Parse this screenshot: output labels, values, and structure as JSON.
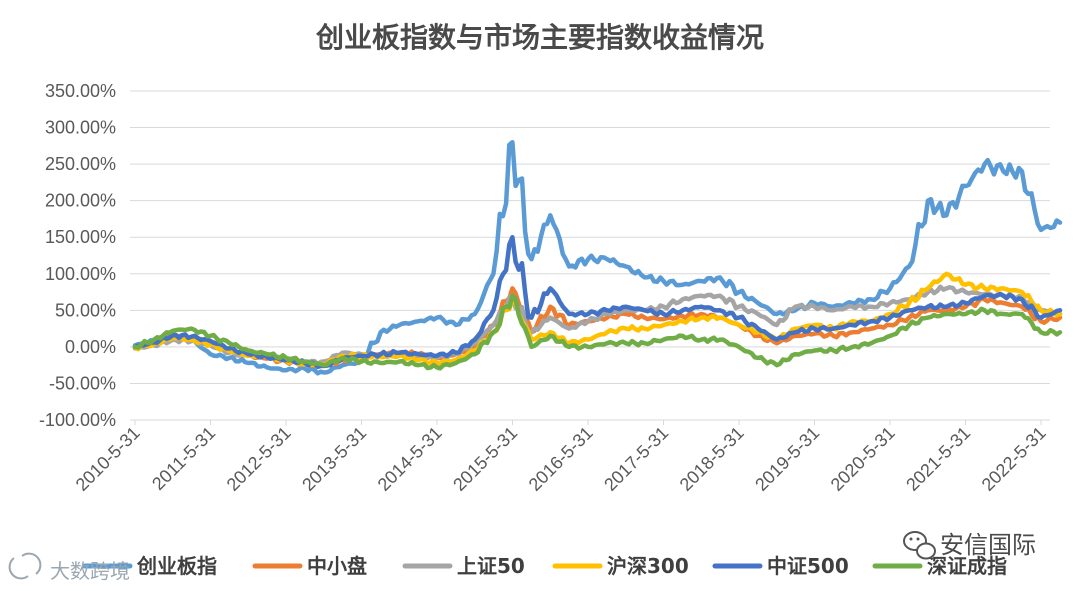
{
  "chart_data": {
    "type": "line",
    "title": "创业板指数与市场主要指数收益情况",
    "xlabel": "",
    "ylabel": "",
    "ylim": [
      -100,
      350
    ],
    "yticks": [
      "350.00%",
      "300.00%",
      "250.00%",
      "200.00%",
      "150.00%",
      "100.00%",
      "50.00%",
      "0.00%",
      "-50.00%",
      "-100.00%"
    ],
    "xticks": [
      "2010-5-31",
      "2011-5-31",
      "2012-5-31",
      "2013-5-31",
      "2014-5-31",
      "2015-5-31",
      "2016-5-31",
      "2017-5-31",
      "2018-5-31",
      "2019-5-31",
      "2020-5-31",
      "2021-5-31",
      "2022-5-31"
    ],
    "grid": true,
    "legend_position": "bottom",
    "x": [
      "2010-05-31",
      "2010-08-31",
      "2010-11-30",
      "2011-02-28",
      "2011-05-31",
      "2011-08-31",
      "2011-11-30",
      "2012-02-29",
      "2012-05-31",
      "2012-08-31",
      "2012-11-30",
      "2013-02-28",
      "2013-05-31",
      "2013-08-31",
      "2013-11-30",
      "2014-02-28",
      "2014-05-31",
      "2014-08-31",
      "2014-11-30",
      "2015-02-28",
      "2015-05-31",
      "2015-08-31",
      "2015-11-30",
      "2016-02-29",
      "2016-05-31",
      "2016-08-31",
      "2016-11-30",
      "2017-02-28",
      "2017-05-31",
      "2017-08-31",
      "2017-11-30",
      "2018-02-28",
      "2018-05-31",
      "2018-08-31",
      "2018-11-30",
      "2019-02-28",
      "2019-05-31",
      "2019-08-31",
      "2019-11-30",
      "2020-02-29",
      "2020-05-31",
      "2020-08-31",
      "2020-11-30",
      "2021-02-28",
      "2021-05-31",
      "2021-08-31",
      "2021-11-30",
      "2022-02-28",
      "2022-05-31",
      "2022-08-31"
    ],
    "series": [
      {
        "name": "创业板指",
        "color": "#5b9bd5",
        "values": [
          2,
          8,
          18,
          10,
          -10,
          -15,
          -22,
          -28,
          -32,
          -30,
          -35,
          -25,
          -20,
          20,
          30,
          35,
          40,
          30,
          45,
          100,
          280,
          120,
          180,
          110,
          120,
          120,
          110,
          95,
          90,
          85,
          90,
          95,
          75,
          60,
          45,
          50,
          60,
          55,
          60,
          65,
          80,
          110,
          200,
          180,
          220,
          250,
          240,
          240,
          160,
          170
        ]
      },
      {
        "name": "中小盘",
        "color": "#ed7d31",
        "values": [
          0,
          5,
          15,
          12,
          5,
          -5,
          -12,
          -16,
          -20,
          -24,
          -26,
          -18,
          -15,
          -10,
          -8,
          -10,
          -15,
          -10,
          0,
          30,
          80,
          20,
          55,
          30,
          35,
          40,
          45,
          40,
          38,
          42,
          45,
          40,
          30,
          15,
          5,
          15,
          18,
          15,
          20,
          25,
          30,
          40,
          50,
          50,
          55,
          65,
          60,
          55,
          35,
          40
        ]
      },
      {
        "name": "上证50",
        "color": "#a5a5a5",
        "values": [
          -2,
          2,
          10,
          8,
          2,
          -8,
          -12,
          -12,
          -16,
          -22,
          -20,
          -8,
          -10,
          -12,
          -10,
          -15,
          -15,
          -10,
          5,
          30,
          70,
          20,
          40,
          25,
          35,
          45,
          50,
          50,
          55,
          65,
          70,
          70,
          55,
          45,
          30,
          55,
          55,
          50,
          55,
          55,
          60,
          65,
          75,
          80,
          75,
          72,
          70,
          68,
          50,
          45
        ]
      },
      {
        "name": "沪深300",
        "color": "#ffc000",
        "values": [
          -1,
          4,
          12,
          10,
          3,
          -6,
          -12,
          -14,
          -18,
          -24,
          -24,
          -12,
          -12,
          -14,
          -12,
          -18,
          -22,
          -18,
          -5,
          20,
          65,
          10,
          20,
          5,
          10,
          20,
          25,
          25,
          30,
          35,
          40,
          40,
          30,
          20,
          10,
          25,
          30,
          25,
          35,
          35,
          45,
          60,
          80,
          100,
          85,
          80,
          80,
          75,
          50,
          45
        ]
      },
      {
        "name": "中证500",
        "color": "#4472c4",
        "values": [
          0,
          6,
          16,
          14,
          8,
          -2,
          -10,
          -14,
          -18,
          -22,
          -26,
          -16,
          -12,
          -10,
          -8,
          -10,
          -12,
          -8,
          10,
          50,
          150,
          40,
          80,
          45,
          45,
          50,
          55,
          50,
          45,
          50,
          55,
          50,
          40,
          25,
          10,
          20,
          25,
          25,
          30,
          35,
          40,
          50,
          55,
          55,
          60,
          70,
          70,
          65,
          40,
          50
        ]
      },
      {
        "name": "深证成指",
        "color": "#70ad47",
        "values": [
          0,
          10,
          22,
          25,
          15,
          5,
          -5,
          -10,
          -15,
          -20,
          -25,
          -15,
          -20,
          -22,
          -20,
          -25,
          -28,
          -22,
          -10,
          20,
          70,
          0,
          15,
          0,
          0,
          5,
          5,
          5,
          10,
          15,
          10,
          10,
          0,
          -15,
          -25,
          -10,
          -5,
          -5,
          0,
          5,
          15,
          30,
          40,
          45,
          45,
          50,
          45,
          45,
          20,
          20
        ]
      }
    ]
  },
  "watermark_left": "大数跨境",
  "watermark_right": "安信国际"
}
